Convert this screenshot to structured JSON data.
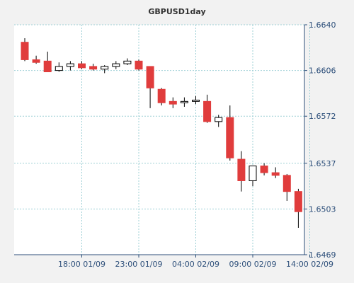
{
  "chart_data": {
    "type": "candlestick",
    "title": "GBPUSD1day",
    "xlabel": "",
    "ylabel": "",
    "y_axis_position": "right",
    "grid": true,
    "legend": "none",
    "ylim": [
      1.6469,
      1.664
    ],
    "y_ticks": [
      1.664,
      1.6606,
      1.6572,
      1.6537,
      1.6503,
      1.6469
    ],
    "y_tick_labels": [
      "1.6640",
      "1.6606",
      "1.6572",
      "1.6537",
      "1.6503",
      "1.6469"
    ],
    "x_ticks": [
      {
        "label": "18:00 01/09",
        "index": 5
      },
      {
        "label": "23:00 01/09",
        "index": 10
      },
      {
        "label": "04:00 02/09",
        "index": 15
      },
      {
        "label": "09:00 02/09",
        "index": 20
      },
      {
        "label": "14:00 02/09",
        "index": 25
      }
    ],
    "colors": {
      "bear": "#e03c3c",
      "bull": "#ffffff",
      "outline": "#000000",
      "grid": "#9fd0d6",
      "plot_bg": "#ffffff",
      "frame_bg": "#f2f2f2",
      "axis": "#2d4f7a"
    },
    "candles": [
      {
        "o": 1.6627,
        "h": 1.663,
        "l": 1.6613,
        "c": 1.6614
      },
      {
        "o": 1.6614,
        "h": 1.6617,
        "l": 1.6611,
        "c": 1.6612
      },
      {
        "o": 1.6613,
        "h": 1.662,
        "l": 1.6605,
        "c": 1.6605
      },
      {
        "o": 1.6606,
        "h": 1.6612,
        "l": 1.6605,
        "c": 1.6609
      },
      {
        "o": 1.6609,
        "h": 1.6613,
        "l": 1.6606,
        "c": 1.6611
      },
      {
        "o": 1.6611,
        "h": 1.6613,
        "l": 1.6607,
        "c": 1.6608
      },
      {
        "o": 1.6609,
        "h": 1.6611,
        "l": 1.6606,
        "c": 1.6607
      },
      {
        "o": 1.6607,
        "h": 1.661,
        "l": 1.6604,
        "c": 1.6609
      },
      {
        "o": 1.6609,
        "h": 1.6613,
        "l": 1.6607,
        "c": 1.6611
      },
      {
        "o": 1.6611,
        "h": 1.6615,
        "l": 1.661,
        "c": 1.6613
      },
      {
        "o": 1.6613,
        "h": 1.6614,
        "l": 1.6606,
        "c": 1.6607
      },
      {
        "o": 1.6609,
        "h": 1.6609,
        "l": 1.6578,
        "c": 1.6593
      },
      {
        "o": 1.6592,
        "h": 1.6593,
        "l": 1.658,
        "c": 1.6582
      },
      {
        "o": 1.6583,
        "h": 1.6586,
        "l": 1.6578,
        "c": 1.6581
      },
      {
        "o": 1.6582,
        "h": 1.6586,
        "l": 1.6579,
        "c": 1.6583
      },
      {
        "o": 1.6583,
        "h": 1.6587,
        "l": 1.6581,
        "c": 1.6584
      },
      {
        "o": 1.6583,
        "h": 1.6588,
        "l": 1.6567,
        "c": 1.6568
      },
      {
        "o": 1.6568,
        "h": 1.6573,
        "l": 1.6564,
        "c": 1.6571
      },
      {
        "o": 1.6571,
        "h": 1.658,
        "l": 1.6539,
        "c": 1.6541
      },
      {
        "o": 1.654,
        "h": 1.6546,
        "l": 1.6516,
        "c": 1.6524
      },
      {
        "o": 1.6524,
        "h": 1.6535,
        "l": 1.652,
        "c": 1.6535
      },
      {
        "o": 1.6535,
        "h": 1.6537,
        "l": 1.6528,
        "c": 1.653
      },
      {
        "o": 1.653,
        "h": 1.6534,
        "l": 1.6526,
        "c": 1.6528
      },
      {
        "o": 1.6528,
        "h": 1.6529,
        "l": 1.6509,
        "c": 1.6516
      },
      {
        "o": 1.6516,
        "h": 1.6518,
        "l": 1.6489,
        "c": 1.6501
      }
    ]
  }
}
